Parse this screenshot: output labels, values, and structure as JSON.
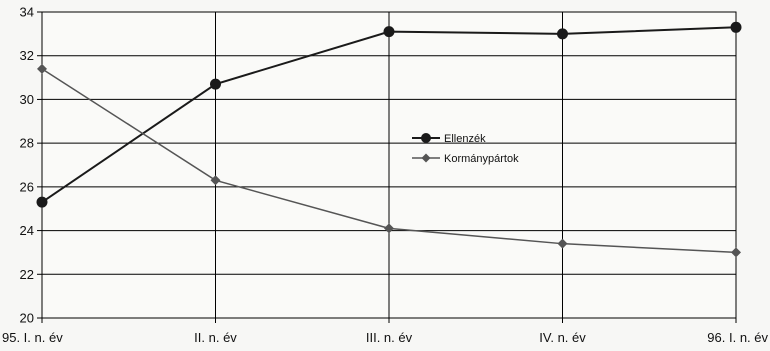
{
  "chart_data": {
    "type": "line",
    "title": "",
    "xlabel": "",
    "ylabel": "",
    "categories": [
      "95. I. n. év",
      "II. n. év",
      "III. n. év",
      "IV. n. év",
      "96. I. n. év"
    ],
    "ylim": [
      20,
      34
    ],
    "yticks": [
      20,
      22,
      24,
      26,
      28,
      30,
      32,
      34
    ],
    "grid": true,
    "legend_position": "center-right",
    "series": [
      {
        "name": "Ellenzék",
        "values": [
          25.3,
          30.7,
          33.1,
          33.0,
          33.3
        ],
        "marker": "circle",
        "color": "#1a1a1a"
      },
      {
        "name": "Kormánypártok",
        "values": [
          31.4,
          26.3,
          24.1,
          23.4,
          23.0
        ],
        "marker": "diamond",
        "color": "#555555"
      }
    ]
  }
}
